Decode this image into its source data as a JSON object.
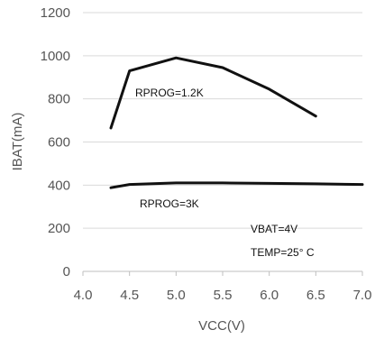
{
  "chart_data": {
    "type": "line",
    "xlabel": "VCC(V)",
    "ylabel": "IBAT(mA)",
    "xlim": [
      4.0,
      7.0
    ],
    "ylim": [
      0,
      1200
    ],
    "x_ticks": [
      "4.0",
      "4.5",
      "5.0",
      "5.5",
      "6.0",
      "6.5",
      "7.0"
    ],
    "y_ticks": [
      "0",
      "200",
      "400",
      "600",
      "800",
      "1000",
      "1200"
    ],
    "grid": "horizontal",
    "series": [
      {
        "label": "RPROG=1.2K",
        "x": [
          4.3,
          4.5,
          5.0,
          5.5,
          6.0,
          6.5
        ],
        "y": [
          665,
          930,
          990,
          945,
          845,
          720
        ]
      },
      {
        "label": "RPROG=3K",
        "x": [
          4.3,
          4.5,
          5.0,
          5.5,
          6.0,
          6.5,
          7.0
        ],
        "y": [
          388,
          403,
          410,
          410,
          408,
          406,
          403
        ]
      }
    ],
    "annotations": [
      "VBAT=4V",
      "TEMP=25° C"
    ],
    "colors": {
      "series": "#111111",
      "grid": "#d9d9d9",
      "text": "#555555"
    }
  }
}
